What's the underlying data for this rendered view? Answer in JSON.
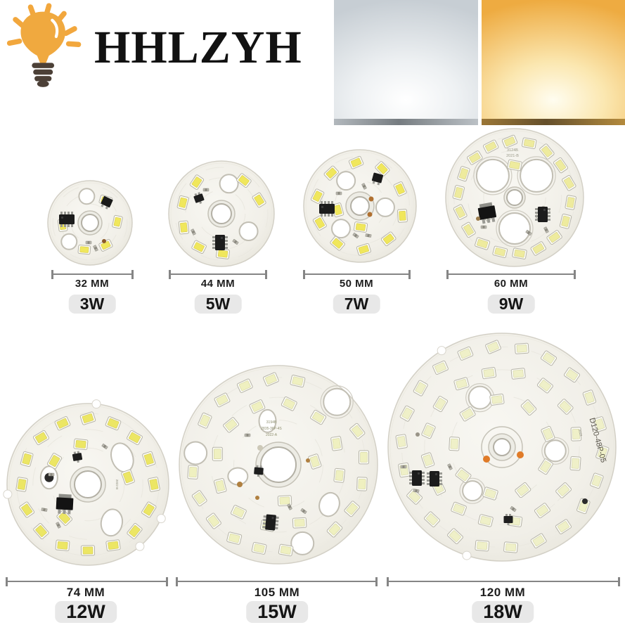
{
  "brand": {
    "name": "HHLZYH",
    "logo_icon": "lightbulb-icon",
    "accent_color": "#f0a93f",
    "base_color": "#4c4037"
  },
  "swatches": {
    "cool_white": {
      "name": "cool-white-light",
      "color": "#eef1f3"
    },
    "warm_white": {
      "name": "warm-white-light",
      "color": "#f3b94e"
    }
  },
  "badge_bg": "#e8e8e8",
  "dimension_line_color": "#858585",
  "boards": [
    {
      "id": "b3w",
      "diameter_label": "32 MM",
      "watt_label": "3W",
      "silkscreen": []
    },
    {
      "id": "b5w",
      "diameter_label": "44 MM",
      "watt_label": "5W",
      "silkscreen": []
    },
    {
      "id": "b7w",
      "diameter_label": "50 MM",
      "watt_label": "7W",
      "silkscreen": []
    },
    {
      "id": "b9w",
      "diameter_label": "60 MM",
      "watt_label": "9W",
      "silkscreen": [
        "3124B",
        "2021-B"
      ]
    },
    {
      "id": "b12w",
      "diameter_label": "74 MM",
      "watt_label": "12W",
      "silkscreen": [
        "2022-B"
      ]
    },
    {
      "id": "b15w",
      "diameter_label": "105 MM",
      "watt_label": "15W",
      "silkscreen": [
        "3194B",
        "2835-36P-4S",
        "2022-A"
      ]
    },
    {
      "id": "b18w",
      "diameter_label": "120 MM",
      "watt_label": "18W",
      "silkscreen": [
        "D120-48P-05",
        "2022"
      ]
    }
  ]
}
